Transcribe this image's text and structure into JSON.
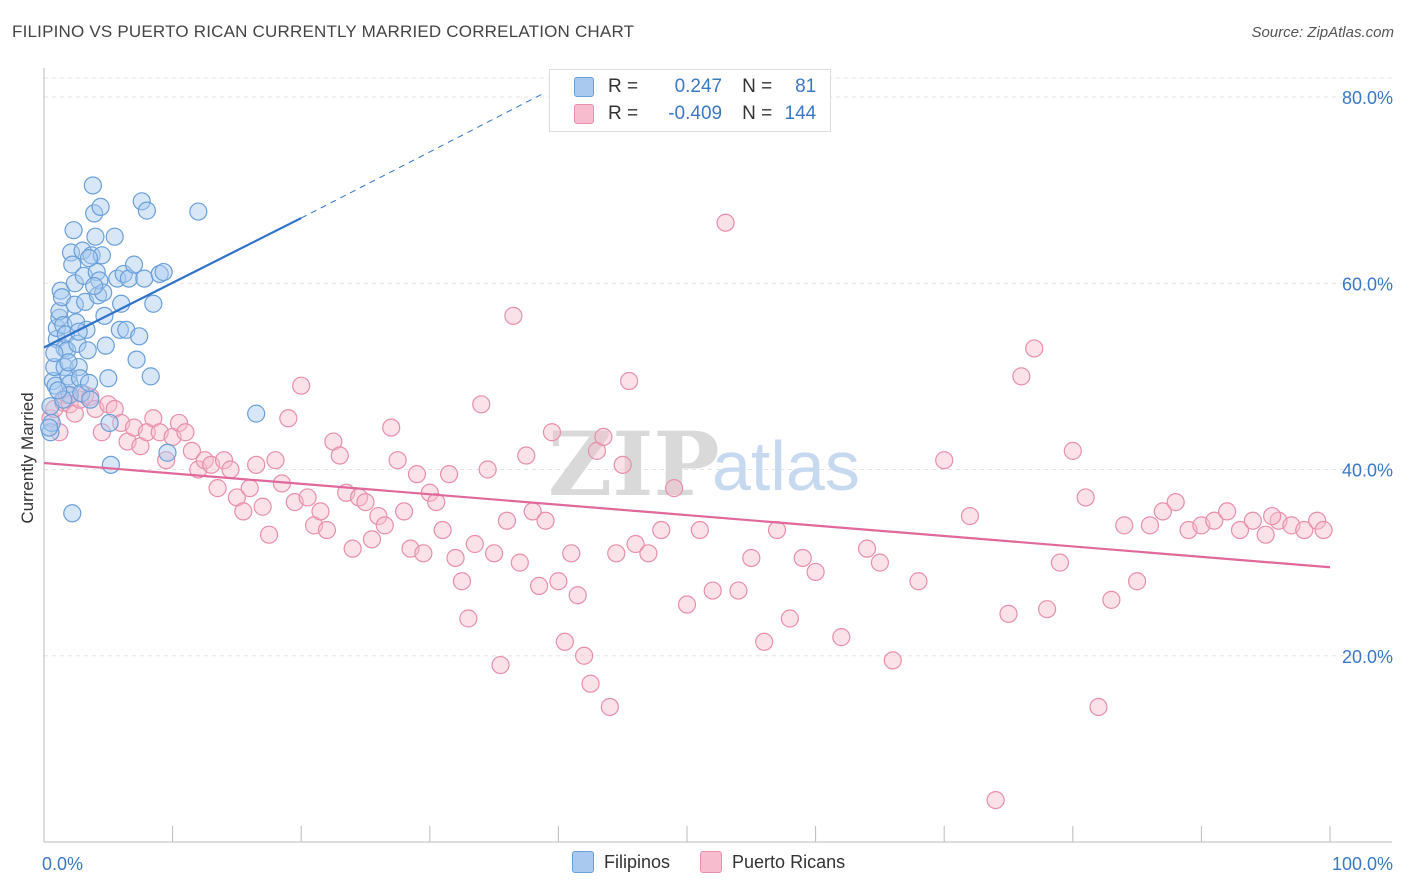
{
  "header": {
    "title": "FILIPINO VS PUERTO RICAN CURRENTLY MARRIED CORRELATION CHART",
    "source": "Source: ZipAtlas.com"
  },
  "watermark": {
    "zip": "ZIP",
    "atlas": "atlas"
  },
  "legend": {
    "rows": [
      {
        "r_label": "R =",
        "r_value": "0.247",
        "n_label": "N =",
        "n_value": "81",
        "color": "#a9c9ef",
        "border": "#6a9fd8"
      },
      {
        "r_label": "R =",
        "r_value": "-0.409",
        "n_label": "N =",
        "n_value": "144",
        "color": "#f7bccd",
        "border": "#e88fab"
      }
    ]
  },
  "bottom_legend": [
    {
      "label": "Filipinos",
      "color": "#a9c9ef",
      "border": "#6a9fd8"
    },
    {
      "label": "Puerto Ricans",
      "color": "#f7bccd",
      "border": "#e88fab"
    }
  ],
  "chart_data": {
    "type": "scatter",
    "title": "FILIPINO VS PUERTO RICAN CURRENTLY MARRIED CORRELATION CHART",
    "xlabel": "",
    "ylabel": "Currently Married",
    "xlim": [
      0,
      100
    ],
    "ylim": [
      0,
      81
    ],
    "x_tick_labels": [
      "0.0%",
      "100.0%"
    ],
    "y_ticks": [
      20,
      40,
      60,
      80
    ],
    "y_tick_labels": [
      "20.0%",
      "40.0%",
      "60.0%",
      "80.0%"
    ],
    "grid": true,
    "series": [
      {
        "name": "Filipinos",
        "color": "#6a9fd8",
        "fill": "#a9c9ef",
        "trend": {
          "x0": 0,
          "y0": 53.1,
          "x1": 20,
          "y1": 67.0,
          "dashed_to_x": 39,
          "dashed_to_y": 80.5,
          "color": "#2f72c9"
        },
        "points": [
          [
            0.5,
            44.0
          ],
          [
            0.6,
            45.0
          ],
          [
            0.5,
            46.8
          ],
          [
            0.7,
            49.5
          ],
          [
            0.8,
            51.0
          ],
          [
            0.9,
            49.0
          ],
          [
            1.0,
            54.0
          ],
          [
            1.0,
            55.2
          ],
          [
            1.2,
            56.3
          ],
          [
            1.3,
            59.2
          ],
          [
            1.2,
            57.0
          ],
          [
            1.4,
            58.5
          ],
          [
            1.5,
            55.5
          ],
          [
            1.6,
            53.0
          ],
          [
            1.6,
            51.0
          ],
          [
            1.7,
            54.5
          ],
          [
            1.8,
            52.8
          ],
          [
            1.9,
            50.0
          ],
          [
            2.0,
            49.2
          ],
          [
            2.0,
            48.0
          ],
          [
            2.1,
            63.3
          ],
          [
            2.2,
            62.0
          ],
          [
            2.3,
            65.7
          ],
          [
            2.4,
            60.0
          ],
          [
            2.4,
            57.7
          ],
          [
            2.5,
            55.8
          ],
          [
            2.6,
            53.5
          ],
          [
            2.7,
            51.0
          ],
          [
            2.8,
            49.8
          ],
          [
            2.9,
            48.2
          ],
          [
            3.0,
            63.5
          ],
          [
            3.1,
            60.8
          ],
          [
            3.2,
            58.0
          ],
          [
            3.3,
            55.0
          ],
          [
            3.4,
            52.8
          ],
          [
            3.5,
            49.3
          ],
          [
            3.6,
            47.5
          ],
          [
            3.7,
            63.0
          ],
          [
            3.8,
            70.5
          ],
          [
            3.9,
            67.5
          ],
          [
            4.0,
            65.0
          ],
          [
            4.1,
            61.2
          ],
          [
            4.2,
            58.7
          ],
          [
            4.3,
            60.3
          ],
          [
            4.4,
            68.2
          ],
          [
            4.5,
            63.0
          ],
          [
            4.6,
            59.0
          ],
          [
            4.7,
            56.5
          ],
          [
            4.8,
            53.3
          ],
          [
            5.0,
            49.8
          ],
          [
            5.1,
            45.0
          ],
          [
            5.2,
            40.5
          ],
          [
            5.5,
            65.0
          ],
          [
            5.7,
            60.5
          ],
          [
            5.9,
            55.0
          ],
          [
            6.0,
            57.8
          ],
          [
            6.2,
            61.0
          ],
          [
            6.4,
            55.0
          ],
          [
            6.6,
            60.5
          ],
          [
            7.0,
            62.0
          ],
          [
            7.2,
            51.8
          ],
          [
            7.4,
            54.3
          ],
          [
            7.6,
            68.8
          ],
          [
            7.8,
            60.5
          ],
          [
            8.0,
            67.8
          ],
          [
            8.3,
            50.0
          ],
          [
            8.5,
            57.8
          ],
          [
            9.0,
            61.0
          ],
          [
            9.3,
            61.2
          ],
          [
            9.6,
            41.8
          ],
          [
            12.0,
            67.7
          ],
          [
            16.5,
            46.0
          ],
          [
            2.2,
            35.3
          ],
          [
            1.5,
            47.5
          ],
          [
            3.5,
            62.7
          ],
          [
            0.8,
            52.5
          ],
          [
            1.1,
            48.5
          ],
          [
            0.4,
            44.5
          ],
          [
            1.9,
            51.5
          ],
          [
            2.7,
            54.8
          ],
          [
            3.9,
            59.7
          ]
        ]
      },
      {
        "name": "Puerto Ricans",
        "color": "#e88fab",
        "fill": "#f7bccd",
        "trend": {
          "x0": 0,
          "y0": 40.7,
          "x1": 100,
          "y1": 29.5,
          "color": "#e0689a"
        },
        "points": [
          [
            0.5,
            45.5
          ],
          [
            0.8,
            46.5
          ],
          [
            1.2,
            44.0
          ],
          [
            1.5,
            47.2
          ],
          [
            1.8,
            48.0
          ],
          [
            2.0,
            47.0
          ],
          [
            2.4,
            46.0
          ],
          [
            2.8,
            47.5
          ],
          [
            3.2,
            48.0
          ],
          [
            3.6,
            47.8
          ],
          [
            4.0,
            46.5
          ],
          [
            4.5,
            44.0
          ],
          [
            5.0,
            47.0
          ],
          [
            5.5,
            46.5
          ],
          [
            6.0,
            45.0
          ],
          [
            6.5,
            43.0
          ],
          [
            7.0,
            44.5
          ],
          [
            7.5,
            42.5
          ],
          [
            8.0,
            44.0
          ],
          [
            8.5,
            45.5
          ],
          [
            9.0,
            44.0
          ],
          [
            9.5,
            41.0
          ],
          [
            10.0,
            43.5
          ],
          [
            10.5,
            45.0
          ],
          [
            11.0,
            44.0
          ],
          [
            11.5,
            42.0
          ],
          [
            12.0,
            40.0
          ],
          [
            12.5,
            41.0
          ],
          [
            13.0,
            40.5
          ],
          [
            13.5,
            38.0
          ],
          [
            14.0,
            41.0
          ],
          [
            14.5,
            40.0
          ],
          [
            15.0,
            37.0
          ],
          [
            15.5,
            35.5
          ],
          [
            16.0,
            38.0
          ],
          [
            16.5,
            40.5
          ],
          [
            17.0,
            36.0
          ],
          [
            17.5,
            33.0
          ],
          [
            18.0,
            41.0
          ],
          [
            18.5,
            38.5
          ],
          [
            19.0,
            45.5
          ],
          [
            19.5,
            36.5
          ],
          [
            20.0,
            49.0
          ],
          [
            20.5,
            37.0
          ],
          [
            21.0,
            34.0
          ],
          [
            21.5,
            35.5
          ],
          [
            22.0,
            33.5
          ],
          [
            22.5,
            43.0
          ],
          [
            23.0,
            41.5
          ],
          [
            23.5,
            37.5
          ],
          [
            24.0,
            31.5
          ],
          [
            24.5,
            37.0
          ],
          [
            25.0,
            36.5
          ],
          [
            25.5,
            32.5
          ],
          [
            26.0,
            35.0
          ],
          [
            26.5,
            34.0
          ],
          [
            27.0,
            44.5
          ],
          [
            27.5,
            41.0
          ],
          [
            28.0,
            35.5
          ],
          [
            28.5,
            31.5
          ],
          [
            29.0,
            39.5
          ],
          [
            29.5,
            31.0
          ],
          [
            30.0,
            37.5
          ],
          [
            30.5,
            36.5
          ],
          [
            31.0,
            33.5
          ],
          [
            31.5,
            39.5
          ],
          [
            32.0,
            30.5
          ],
          [
            32.5,
            28.0
          ],
          [
            33.0,
            24.0
          ],
          [
            33.5,
            32.0
          ],
          [
            34.0,
            47.0
          ],
          [
            34.5,
            40.0
          ],
          [
            35.0,
            31.0
          ],
          [
            35.5,
            19.0
          ],
          [
            36.0,
            34.5
          ],
          [
            36.5,
            56.5
          ],
          [
            37.0,
            30.0
          ],
          [
            37.5,
            41.5
          ],
          [
            38.0,
            35.5
          ],
          [
            38.5,
            27.5
          ],
          [
            39.0,
            34.5
          ],
          [
            39.5,
            44.0
          ],
          [
            40.0,
            28.0
          ],
          [
            40.5,
            21.5
          ],
          [
            41.0,
            31.0
          ],
          [
            41.5,
            26.5
          ],
          [
            42.0,
            20.0
          ],
          [
            42.5,
            17.0
          ],
          [
            43.0,
            42.0
          ],
          [
            43.5,
            43.5
          ],
          [
            44.0,
            14.5
          ],
          [
            44.5,
            31.0
          ],
          [
            45.0,
            40.5
          ],
          [
            45.5,
            49.5
          ],
          [
            46.0,
            32.0
          ],
          [
            47.0,
            31.0
          ],
          [
            48.0,
            33.5
          ],
          [
            49.0,
            38.0
          ],
          [
            50.0,
            25.5
          ],
          [
            51.0,
            33.5
          ],
          [
            52.0,
            27.0
          ],
          [
            53.0,
            66.5
          ],
          [
            54.0,
            27.0
          ],
          [
            55.0,
            30.5
          ],
          [
            56.0,
            21.5
          ],
          [
            57.0,
            33.5
          ],
          [
            58.0,
            24.0
          ],
          [
            59.0,
            30.5
          ],
          [
            60.0,
            29.0
          ],
          [
            62.0,
            22.0
          ],
          [
            64.0,
            31.5
          ],
          [
            65.0,
            30.0
          ],
          [
            66.0,
            19.5
          ],
          [
            68.0,
            28.0
          ],
          [
            70.0,
            41.0
          ],
          [
            72.0,
            35.0
          ],
          [
            74.0,
            4.5
          ],
          [
            75.0,
            24.5
          ],
          [
            76.0,
            50.0
          ],
          [
            77.0,
            53.0
          ],
          [
            78.0,
            25.0
          ],
          [
            79.0,
            30.0
          ],
          [
            80.0,
            42.0
          ],
          [
            81.0,
            37.0
          ],
          [
            82.0,
            14.5
          ],
          [
            83.0,
            26.0
          ],
          [
            84.0,
            34.0
          ],
          [
            85.0,
            28.0
          ],
          [
            86.0,
            34.0
          ],
          [
            87.0,
            35.5
          ],
          [
            88.0,
            36.5
          ],
          [
            89.0,
            33.5
          ],
          [
            90.0,
            34.0
          ],
          [
            91.0,
            34.5
          ],
          [
            92.0,
            35.5
          ],
          [
            93.0,
            33.5
          ],
          [
            94.0,
            34.5
          ],
          [
            95.0,
            33.0
          ],
          [
            96.0,
            34.5
          ],
          [
            97.0,
            34.0
          ],
          [
            98.0,
            33.5
          ],
          [
            99.0,
            34.5
          ],
          [
            99.5,
            33.5
          ],
          [
            95.5,
            35.0
          ]
        ]
      }
    ]
  }
}
